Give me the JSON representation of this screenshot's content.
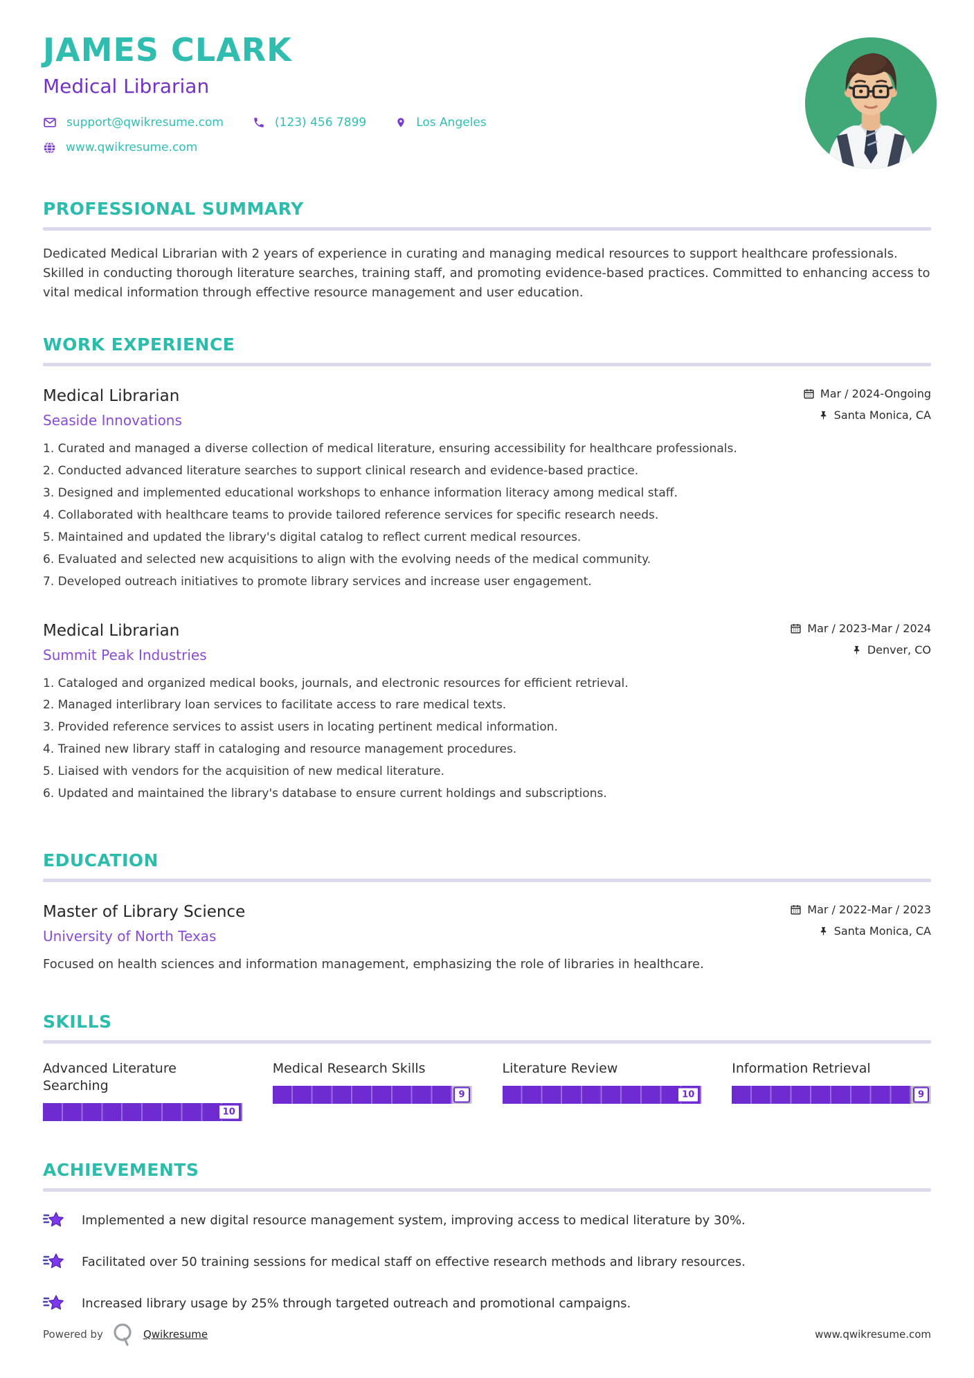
{
  "header": {
    "name": "JAMES CLARK",
    "title": "Medical Librarian",
    "contacts": [
      {
        "icon": "mail-icon",
        "text": "support@qwikresume.com"
      },
      {
        "icon": "phone-icon",
        "text": "(123) 456 7899"
      },
      {
        "icon": "location-pin-icon",
        "text": "Los Angeles"
      },
      {
        "icon": "globe-icon",
        "text": "www.qwikresume.com"
      }
    ],
    "avatar": "portrait photo of young man with glasses on green background"
  },
  "sections": {
    "summary": {
      "heading": "PROFESSIONAL SUMMARY",
      "text": "Dedicated Medical Librarian with 2 years of experience in curating and managing medical resources to support healthcare professionals. Skilled in conducting thorough literature searches, training staff, and promoting evidence-based practices. Committed to enhancing access to vital medical information through effective resource management and user education."
    },
    "experience": {
      "heading": "WORK EXPERIENCE",
      "jobs": [
        {
          "title": "Medical Librarian",
          "company": "Seaside Innovations",
          "date": "Mar / 2024-Ongoing",
          "location": "Santa Monica, CA",
          "bullets": [
            "Curated and managed a diverse collection of medical literature, ensuring accessibility for healthcare professionals.",
            "Conducted advanced literature searches to support clinical research and evidence-based practice.",
            "Designed and implemented educational workshops to enhance information literacy among medical staff.",
            "Collaborated with healthcare teams to provide tailored reference services for specific research needs.",
            "Maintained and updated the library's digital catalog to reflect current medical resources.",
            "Evaluated and selected new acquisitions to align with the evolving needs of the medical community.",
            "Developed outreach initiatives to promote library services and increase user engagement."
          ]
        },
        {
          "title": "Medical Librarian",
          "company": "Summit Peak Industries",
          "date": "Mar / 2023-Mar / 2024",
          "location": "Denver, CO",
          "bullets": [
            "Cataloged and organized medical books, journals, and electronic resources for efficient retrieval.",
            "Managed interlibrary loan services to facilitate access to rare medical texts.",
            "Provided reference services to assist users in locating pertinent medical information.",
            "Trained new library staff in cataloging and resource management procedures.",
            "Liaised with vendors for the acquisition of new medical literature.",
            "Updated and maintained the library's database to ensure current holdings and subscriptions."
          ]
        }
      ]
    },
    "education": {
      "heading": "EDUCATION",
      "degree": "Master of Library Science",
      "school": "University of North Texas",
      "date": "Mar / 2022-Mar / 2023",
      "location": "Santa Monica, CA",
      "description": "Focused on health sciences and information management, emphasizing the role of libraries in healthcare."
    },
    "skills": {
      "heading": "SKILLS",
      "items": [
        {
          "name": "Advanced Literature Searching",
          "value": 10,
          "max": 10
        },
        {
          "name": "Medical Research Skills",
          "value": 9,
          "max": 10
        },
        {
          "name": "Literature Review",
          "value": 10,
          "max": 10
        },
        {
          "name": "Information Retrieval",
          "value": 9,
          "max": 10
        }
      ]
    },
    "achievements": {
      "heading": "ACHIEVEMENTS",
      "items": [
        "Implemented a new digital resource management system, improving access to medical literature by 30%.",
        "Facilitated over 50 training sessions for medical staff on effective research methods and library resources.",
        "Increased library usage by 25% through targeted outreach and promotional campaigns."
      ]
    }
  },
  "footer": {
    "powered_by": "Powered by",
    "brand": "Qwikresume",
    "website": "www.qwikresume.com"
  },
  "colors": {
    "accent_teal": "#2CBCAC",
    "accent_purple": "#7231C8",
    "company_purple": "#8A4BD4",
    "bar_purple": "#6D2BD0",
    "bar_gray": "#BDBDBD",
    "rule_lavender": "#DCD8EE",
    "avatar_green": "#41A878",
    "body_text": "#3B3B3B"
  }
}
